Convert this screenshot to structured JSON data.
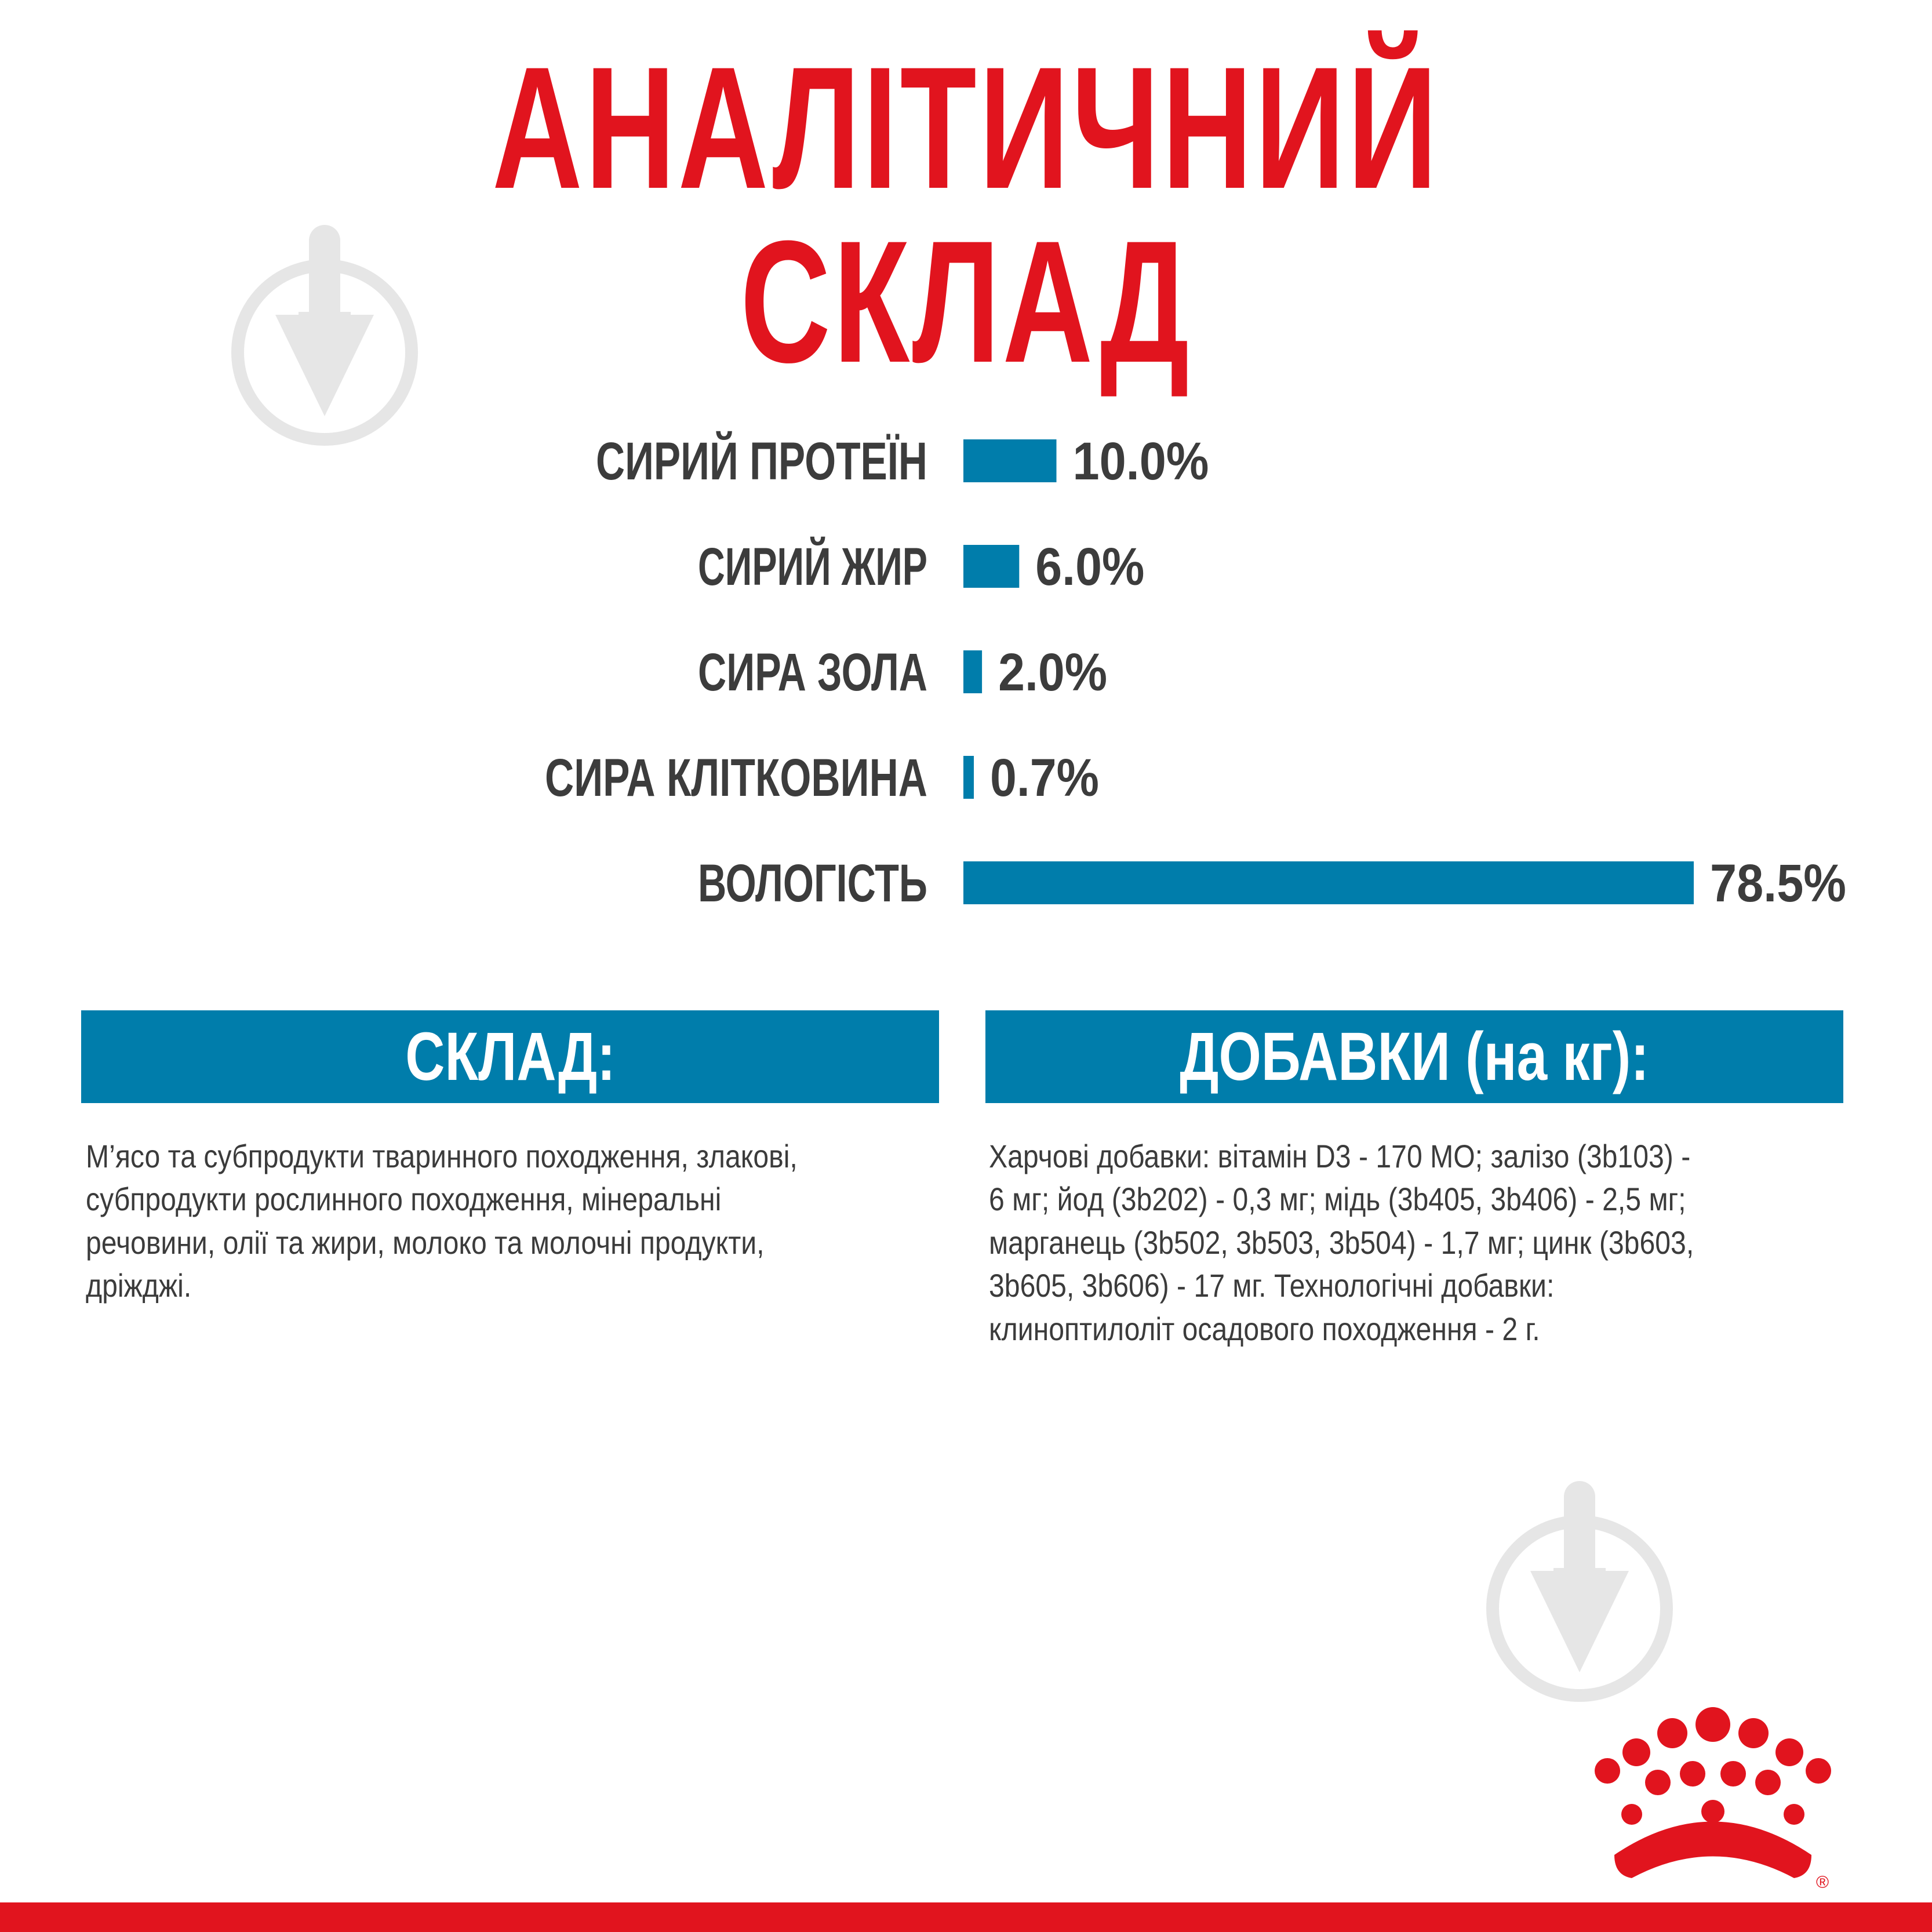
{
  "title": "АНАЛІТИЧНИЙ СКЛАД",
  "colors": {
    "brand_red": "#e1141e",
    "bar_blue": "#007dab",
    "text_dark": "#3c3c3c",
    "watermark_gray": "#e6e6e6"
  },
  "chart_data": {
    "type": "bar",
    "orientation": "horizontal",
    "categories": [
      "СИРИЙ ПРОТЕЇН",
      "СИРИЙ ЖИР",
      "СИРА ЗОЛА",
      "СИРА КЛІТКОВИНА",
      "ВОЛОГІСТЬ"
    ],
    "values": [
      10.0,
      6.0,
      2.0,
      0.7,
      78.5
    ],
    "value_labels": [
      "10.0%",
      "6.0%",
      "2.0%",
      "0.7%",
      "78.5%"
    ],
    "unit": "%",
    "xlim": [
      0,
      78.5
    ]
  },
  "composition": {
    "header": "СКЛАД:",
    "text": "М’ясо та субпродукти тваринного походження, злакові,\nсубпродукти рослинного походження, мінеральні\nречовини, олії та жири, молоко та молочні продукти,\nдріжджі."
  },
  "additives": {
    "header": "ДОБАВКИ (на кг):",
    "text": "Харчові добавки: вітамін D3 - 170 МО; залізо (3b103) -\n6 мг; йод (3b202) - 0,3 мг; мідь (3b405, 3b406) - 2,5 мг;\nмарганець (3b502, 3b503, 3b504) - 1,7 мг; цинк (3b603,\n3b605, 3b606) - 17 мг. Технологічні добавки:\nклиноптилоліт осадового походження - 2 г."
  },
  "icons": {
    "watermark": "download-arrow-icon",
    "logo": "crown-logo-icon",
    "logo_mark": "®"
  }
}
